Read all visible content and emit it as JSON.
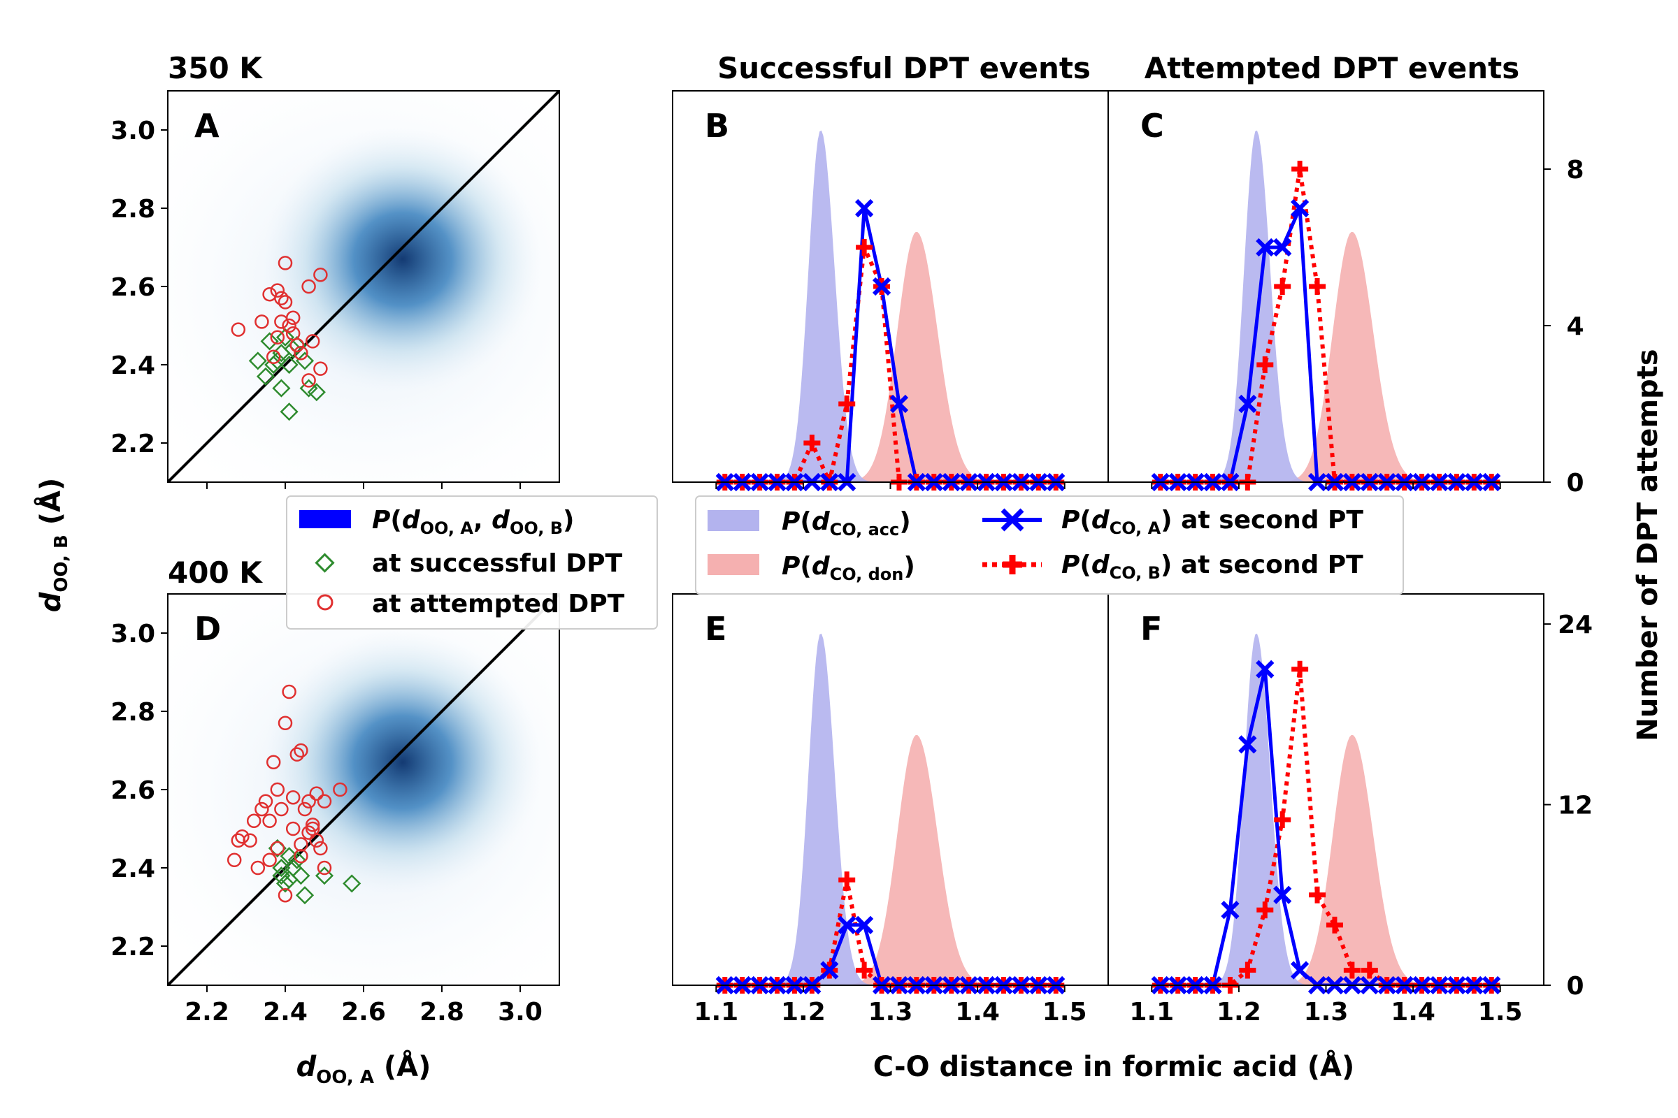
{
  "colors": {
    "acc_fill": "#b3b3ee",
    "don_fill": "#f5b0b0",
    "seriesA": "#0000ff",
    "seriesB": "#ff0000",
    "success_marker": "#2e8b2e",
    "attempt_marker": "#e03030",
    "density": "#08519c"
  },
  "titles": {
    "temp350": "350 K",
    "temp400": "400 K",
    "successful": "Successful DPT events",
    "attempted": "Attempted DPT events"
  },
  "axes": {
    "scatter_ylabel": "d_OO,B (Å)",
    "scatter_xlabel": "d_OO,A (Å)",
    "hist_xlabel": "C-O distance in formic acid (Å)",
    "hist_ylabel": "Number of DPT attempts"
  },
  "legend_scatter": {
    "density": "P(d_OO,A, d_OO,B)",
    "success": "at successful DPT",
    "attempt": "at attempted DPT"
  },
  "legend_hist": {
    "acc": "P(d_CO,acc)",
    "don": "P(d_CO,don)",
    "seriesA": "P(d_CO,A) at second PT",
    "seriesB": "P(d_CO,B) at second PT"
  },
  "chart_data": [
    {
      "id": "A",
      "type": "scatter",
      "title": "350 K",
      "xlim": [
        2.1,
        3.1
      ],
      "ylim": [
        2.1,
        3.1
      ],
      "xticks": [
        "2.2",
        "2.4",
        "2.6",
        "2.8",
        "3.0"
      ],
      "yticks": [
        "2.2",
        "2.4",
        "2.6",
        "2.8",
        "3.0"
      ],
      "density_center": [
        2.7,
        2.67
      ],
      "diagonal": "y = x",
      "successful": [
        [
          2.33,
          2.41
        ],
        [
          2.35,
          2.37
        ],
        [
          2.36,
          2.46
        ],
        [
          2.38,
          2.41
        ],
        [
          2.39,
          2.43
        ],
        [
          2.4,
          2.47
        ],
        [
          2.41,
          2.4
        ],
        [
          2.42,
          2.44
        ],
        [
          2.39,
          2.34
        ],
        [
          2.41,
          2.28
        ],
        [
          2.45,
          2.41
        ],
        [
          2.46,
          2.34
        ],
        [
          2.48,
          2.33
        ],
        [
          2.37,
          2.4
        ],
        [
          2.43,
          2.45
        ]
      ],
      "attempted": [
        [
          2.28,
          2.49
        ],
        [
          2.34,
          2.51
        ],
        [
          2.36,
          2.58
        ],
        [
          2.38,
          2.59
        ],
        [
          2.39,
          2.57
        ],
        [
          2.39,
          2.51
        ],
        [
          2.41,
          2.5
        ],
        [
          2.42,
          2.52
        ],
        [
          2.4,
          2.66
        ],
        [
          2.43,
          2.45
        ],
        [
          2.46,
          2.6
        ],
        [
          2.47,
          2.46
        ],
        [
          2.49,
          2.63
        ],
        [
          2.49,
          2.39
        ],
        [
          2.37,
          2.42
        ],
        [
          2.4,
          2.56
        ],
        [
          2.42,
          2.48
        ],
        [
          2.46,
          2.36
        ],
        [
          2.44,
          2.43
        ],
        [
          2.38,
          2.47
        ]
      ]
    },
    {
      "id": "D",
      "type": "scatter",
      "title": "400 K",
      "xlim": [
        2.1,
        3.1
      ],
      "ylim": [
        2.1,
        3.1
      ],
      "xticks": [
        "2.2",
        "2.4",
        "2.6",
        "2.8",
        "3.0"
      ],
      "yticks": [
        "2.2",
        "2.4",
        "2.6",
        "2.8",
        "3.0"
      ],
      "density_center": [
        2.7,
        2.67
      ],
      "diagonal": "y = x",
      "successful": [
        [
          2.38,
          2.45
        ],
        [
          2.39,
          2.38
        ],
        [
          2.4,
          2.36
        ],
        [
          2.41,
          2.43
        ],
        [
          2.42,
          2.4
        ],
        [
          2.43,
          2.42
        ],
        [
          2.44,
          2.38
        ],
        [
          2.45,
          2.33
        ],
        [
          2.5,
          2.38
        ],
        [
          2.57,
          2.36
        ],
        [
          2.39,
          2.4
        ],
        [
          2.41,
          2.37
        ]
      ],
      "attempted": [
        [
          2.27,
          2.42
        ],
        [
          2.28,
          2.47
        ],
        [
          2.29,
          2.48
        ],
        [
          2.31,
          2.47
        ],
        [
          2.32,
          2.52
        ],
        [
          2.33,
          2.4
        ],
        [
          2.34,
          2.55
        ],
        [
          2.35,
          2.57
        ],
        [
          2.36,
          2.42
        ],
        [
          2.37,
          2.67
        ],
        [
          2.38,
          2.6
        ],
        [
          2.39,
          2.55
        ],
        [
          2.4,
          2.77
        ],
        [
          2.41,
          2.85
        ],
        [
          2.42,
          2.58
        ],
        [
          2.43,
          2.69
        ],
        [
          2.44,
          2.7
        ],
        [
          2.44,
          2.46
        ],
        [
          2.45,
          2.55
        ],
        [
          2.46,
          2.57
        ],
        [
          2.47,
          2.5
        ],
        [
          2.48,
          2.59
        ],
        [
          2.48,
          2.47
        ],
        [
          2.49,
          2.45
        ],
        [
          2.5,
          2.57
        ],
        [
          2.5,
          2.4
        ],
        [
          2.54,
          2.6
        ],
        [
          2.38,
          2.45
        ],
        [
          2.4,
          2.33
        ],
        [
          2.42,
          2.5
        ],
        [
          2.46,
          2.49
        ],
        [
          2.36,
          2.52
        ],
        [
          2.44,
          2.43
        ],
        [
          2.47,
          2.51
        ]
      ]
    },
    {
      "id": "B",
      "type": "line",
      "title": "Successful DPT events",
      "xlim": [
        1.05,
        1.55
      ],
      "ylim": [
        0,
        10
      ],
      "x": [
        1.11,
        1.13,
        1.15,
        1.17,
        1.19,
        1.21,
        1.23,
        1.25,
        1.27,
        1.29,
        1.31,
        1.33,
        1.35,
        1.37,
        1.39,
        1.41,
        1.43,
        1.45,
        1.47,
        1.49
      ],
      "series": [
        {
          "name": "P(d_CO,A) at second PT",
          "values": [
            0,
            0,
            0,
            0,
            0,
            0,
            0,
            0,
            7,
            5,
            2,
            0,
            0,
            0,
            0,
            0,
            0,
            0,
            0,
            0
          ]
        },
        {
          "name": "P(d_CO,B) at second PT",
          "values": [
            0,
            0,
            0,
            0,
            0,
            1,
            0,
            2,
            6,
            5,
            0,
            0,
            0,
            0,
            0,
            0,
            0,
            0,
            0,
            0
          ]
        }
      ],
      "distributions": {
        "acc_peak": 1.22,
        "don_peak": 1.33
      }
    },
    {
      "id": "C",
      "type": "line",
      "title": "Attempted DPT events",
      "xlim": [
        1.05,
        1.55
      ],
      "ylim": [
        0,
        10
      ],
      "yticks": [
        "0",
        "4",
        "8"
      ],
      "ylabel": "Number of DPT attempts",
      "x": [
        1.11,
        1.13,
        1.15,
        1.17,
        1.19,
        1.21,
        1.23,
        1.25,
        1.27,
        1.29,
        1.31,
        1.33,
        1.35,
        1.37,
        1.39,
        1.41,
        1.43,
        1.45,
        1.47,
        1.49
      ],
      "series": [
        {
          "name": "P(d_CO,A) at second PT",
          "values": [
            0,
            0,
            0,
            0,
            0,
            2,
            6,
            6,
            7,
            0,
            0,
            0,
            0,
            0,
            0,
            0,
            0,
            0,
            0,
            0
          ]
        },
        {
          "name": "P(d_CO,B) at second PT",
          "values": [
            0,
            0,
            0,
            0,
            0,
            0,
            3,
            5,
            8,
            5,
            0,
            0,
            0,
            0,
            0,
            0,
            0,
            0,
            0,
            0
          ]
        }
      ],
      "distributions": {
        "acc_peak": 1.22,
        "don_peak": 1.33
      }
    },
    {
      "id": "E",
      "type": "line",
      "xlim": [
        1.05,
        1.55
      ],
      "ylim": [
        0,
        26
      ],
      "xticks": [
        "1.1",
        "1.2",
        "1.3",
        "1.4",
        "1.5"
      ],
      "xlabel": "C-O distance in formic acid (Å)",
      "x": [
        1.11,
        1.13,
        1.15,
        1.17,
        1.19,
        1.21,
        1.23,
        1.25,
        1.27,
        1.29,
        1.31,
        1.33,
        1.35,
        1.37,
        1.39,
        1.41,
        1.43,
        1.45,
        1.47,
        1.49
      ],
      "series": [
        {
          "name": "P(d_CO,A) at second PT",
          "values": [
            0,
            0,
            0,
            0,
            0,
            0,
            1,
            4,
            4,
            0,
            0,
            0,
            0,
            0,
            0,
            0,
            0,
            0,
            0,
            0
          ]
        },
        {
          "name": "P(d_CO,B) at second PT",
          "values": [
            0,
            0,
            0,
            0,
            0,
            0,
            1,
            7,
            1,
            0,
            0,
            0,
            0,
            0,
            0,
            0,
            0,
            0,
            0,
            0
          ]
        }
      ],
      "distributions": {
        "acc_peak": 1.22,
        "don_peak": 1.33
      }
    },
    {
      "id": "F",
      "type": "line",
      "xlim": [
        1.05,
        1.55
      ],
      "ylim": [
        0,
        26
      ],
      "xticks": [
        "1.1",
        "1.2",
        "1.3",
        "1.4",
        "1.5"
      ],
      "yticks": [
        "0",
        "12",
        "24"
      ],
      "x": [
        1.11,
        1.13,
        1.15,
        1.17,
        1.19,
        1.21,
        1.23,
        1.25,
        1.27,
        1.29,
        1.31,
        1.33,
        1.35,
        1.37,
        1.39,
        1.41,
        1.43,
        1.45,
        1.47,
        1.49
      ],
      "series": [
        {
          "name": "P(d_CO,A) at second PT",
          "values": [
            0,
            0,
            0,
            0,
            5,
            16,
            21,
            6,
            1,
            0,
            0,
            0,
            0,
            0,
            0,
            0,
            0,
            0,
            0,
            0
          ]
        },
        {
          "name": "P(d_CO,B) at second PT",
          "values": [
            0,
            0,
            0,
            0,
            0,
            1,
            5,
            11,
            21,
            6,
            4,
            1,
            1,
            0,
            0,
            0,
            0,
            0,
            0,
            0
          ]
        }
      ],
      "distributions": {
        "acc_peak": 1.22,
        "don_peak": 1.33
      }
    }
  ]
}
